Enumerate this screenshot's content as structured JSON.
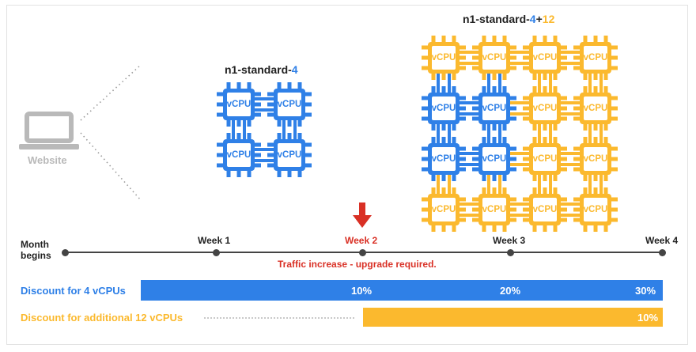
{
  "colors": {
    "blue": "#2f80e7",
    "yellow": "#fbb92e",
    "red": "#d93025",
    "gray": "#b9b9b9",
    "dark": "#222222"
  },
  "website": {
    "label": "Website",
    "icon": "laptop-icon"
  },
  "small_machine": {
    "prefix": "n1-standard-",
    "count": "4",
    "chip_label": "vCPU"
  },
  "large_machine": {
    "prefix": "n1-standard-",
    "base": "4",
    "plus": "+",
    "extra": "12",
    "chip_label": "vCPU"
  },
  "timeline": {
    "start_line1": "Month",
    "start_line2": "begins",
    "week1": "Week 1",
    "week2": "Week 2",
    "week3": "Week 3",
    "week4": "Week 4",
    "note": "Traffic increase - upgrade required.",
    "marker_icon": "down-arrow-icon"
  },
  "discounts": {
    "base_label": "Discount for 4 vCPUs",
    "base_values": [
      "10%",
      "20%",
      "30%"
    ],
    "extra_label": "Discount for additional 12 vCPUs",
    "extra_values": [
      "10%"
    ]
  }
}
